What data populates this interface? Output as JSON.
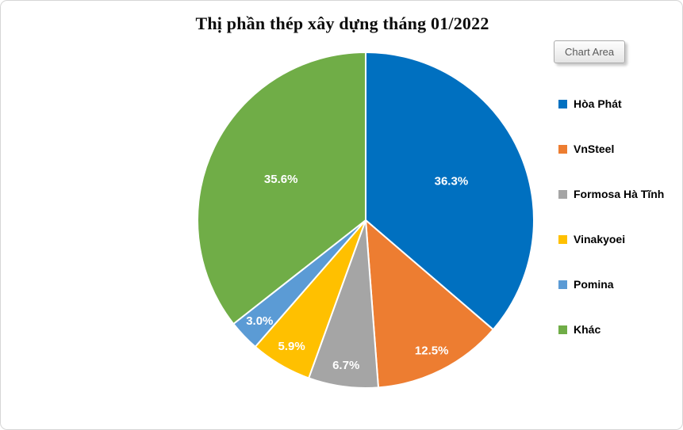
{
  "title": "Thị phần thép xây dựng tháng 01/2022",
  "tooltip_label": "Chart Area",
  "chart_data": {
    "type": "pie",
    "title": "Thị phần thép xây dựng tháng 01/2022",
    "categories": [
      "Hòa Phát",
      "VnSteel",
      "Formosa Hà Tĩnh",
      "Vinakyoei",
      "Pomina",
      "Khác"
    ],
    "values": [
      36.3,
      12.5,
      6.7,
      5.9,
      3.0,
      35.6
    ],
    "labels": [
      "36.3%",
      "12.5%",
      "6.7%",
      "5.9%",
      "3.0%",
      "35.6%"
    ],
    "colors": [
      "#0070C0",
      "#ED7D31",
      "#A5A5A5",
      "#FFC000",
      "#5B9BD5",
      "#70AD47"
    ],
    "start_angle": 0,
    "direction": "clockwise",
    "slice_border_color": "#FFFFFF",
    "label_color": "#FFFFFF",
    "legend_position": "right"
  }
}
